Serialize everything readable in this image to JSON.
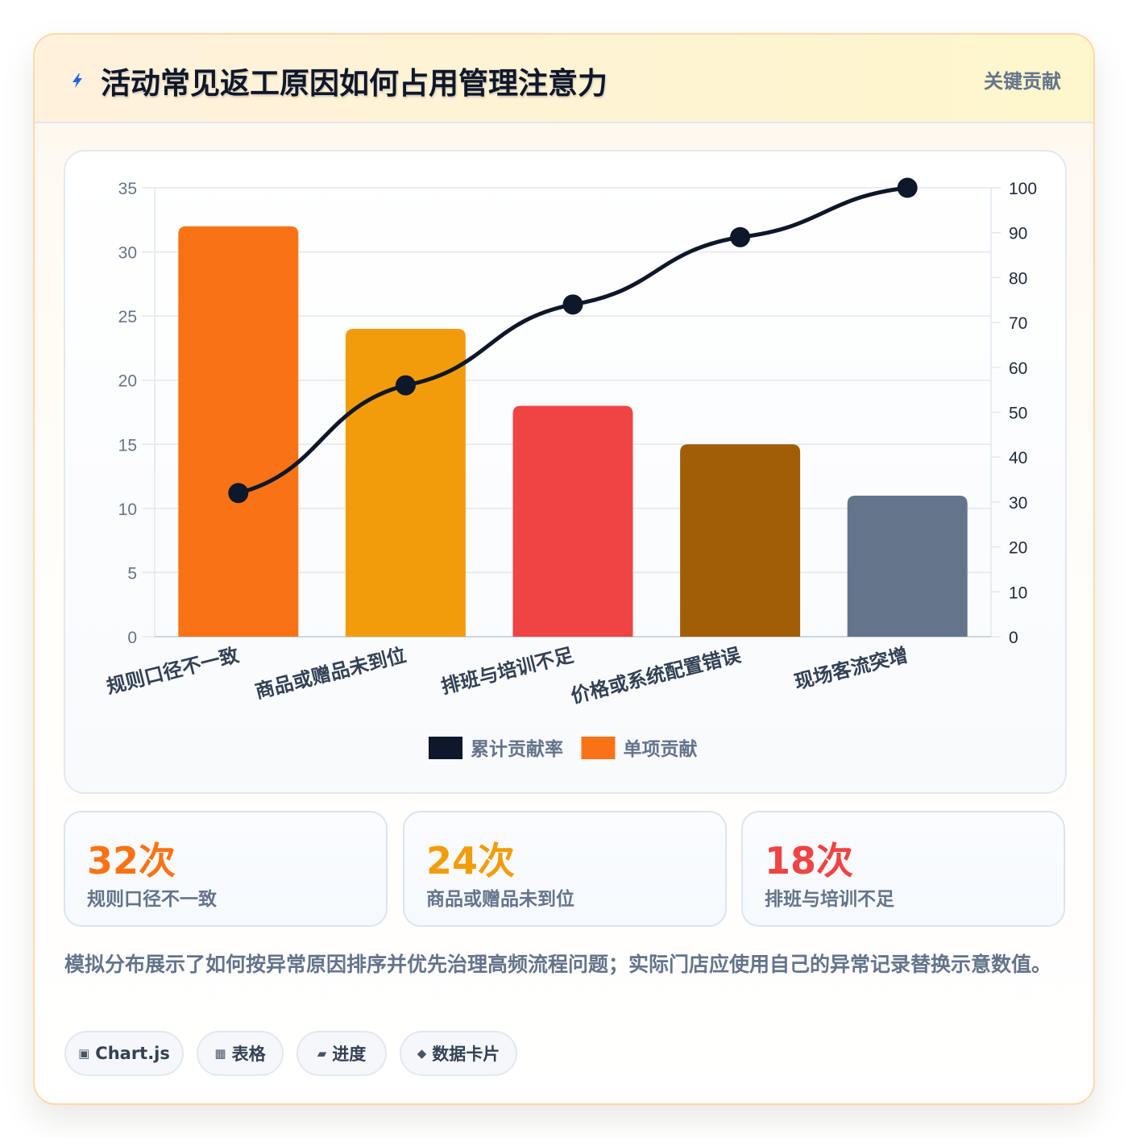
{
  "header": {
    "icon": "lightning-icon",
    "title": "活动常见返工原因如何占用管理注意力",
    "badge": "关键贡献"
  },
  "chart_data": {
    "type": "bar",
    "categories": [
      "规则口径不一致",
      "商品或赠品未到位",
      "排班与培训不足",
      "价格或系统配置错误",
      "现场客流突增"
    ],
    "series": [
      {
        "name": "单项贡献",
        "type": "bar",
        "axis": "left",
        "values": [
          32,
          24,
          18,
          15,
          11
        ],
        "colors": [
          "#f97316",
          "#f39c0b",
          "#ef4444",
          "#a05f06",
          "#64748b"
        ]
      },
      {
        "name": "累计贡献率",
        "type": "line",
        "axis": "right",
        "values": [
          32,
          56,
          74,
          89,
          100
        ],
        "color": "#0f172a"
      }
    ],
    "ylim_left": [
      0,
      35
    ],
    "yticks_left": [
      0,
      5,
      10,
      15,
      20,
      25,
      30,
      35
    ],
    "ylim_right": [
      0,
      100
    ],
    "yticks_right": [
      0,
      10,
      20,
      30,
      40,
      50,
      60,
      70,
      80,
      90,
      100
    ],
    "legend": [
      {
        "label": "累计贡献率",
        "color": "#0f172a"
      },
      {
        "label": "单项贡献",
        "color": "#f97316"
      }
    ],
    "legend_position": "bottom",
    "grid": true
  },
  "stats": [
    {
      "value": "32次",
      "label": "规则口径不一致",
      "color": "#f97316"
    },
    {
      "value": "24次",
      "label": "商品或赠品未到位",
      "color": "#f39c0b"
    },
    {
      "value": "18次",
      "label": "排班与培训不足",
      "color": "#ef4444"
    }
  ],
  "note": "模拟分布展示了如何按异常原因排序并优先治理高频流程问题；实际门店应使用自己的异常记录替换示意数值。",
  "chips": [
    {
      "icon": "chart-icon",
      "glyph": "▣",
      "label": "Chart.js"
    },
    {
      "icon": "table-icon",
      "glyph": "▦",
      "label": "表格"
    },
    {
      "icon": "progress-icon",
      "glyph": "▰",
      "label": "进度"
    },
    {
      "icon": "data-card-icon",
      "glyph": "◆",
      "label": "数据卡片"
    }
  ]
}
